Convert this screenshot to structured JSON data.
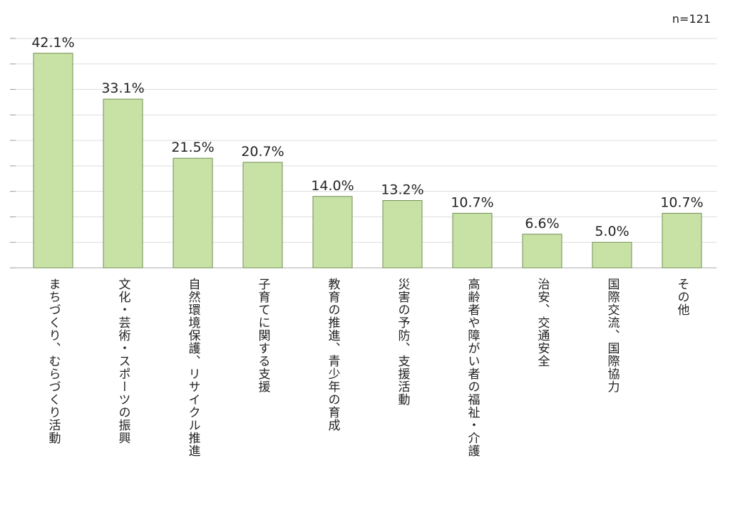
{
  "chart_data": {
    "type": "bar",
    "annotation": "n=121",
    "categories": [
      "まちづくり、むらづくり活動",
      "文化・芸術・スポーツの振興",
      "自然環境保護、リサイクル推進",
      "子育てに関する支援",
      "教育の推進、青少年の育成",
      "災害の予防、支援活動",
      "高齢者や障がい者の福祉・介護",
      "治安、交通安全",
      "国際交流、国際協力",
      "その他"
    ],
    "values": [
      42.1,
      33.1,
      21.5,
      20.7,
      14.0,
      13.2,
      10.7,
      6.6,
      5.0,
      10.7
    ],
    "value_labels": [
      "42.1%",
      "33.1%",
      "21.5%",
      "20.7%",
      "14.0%",
      "13.2%",
      "10.7%",
      "6.6%",
      "5.0%",
      "10.7%"
    ],
    "color": "#c8e2a6",
    "ylim": [
      0,
      45
    ],
    "yticks": [
      0,
      5,
      10,
      15,
      20,
      25,
      30,
      35,
      40,
      45
    ],
    "grid": true
  }
}
